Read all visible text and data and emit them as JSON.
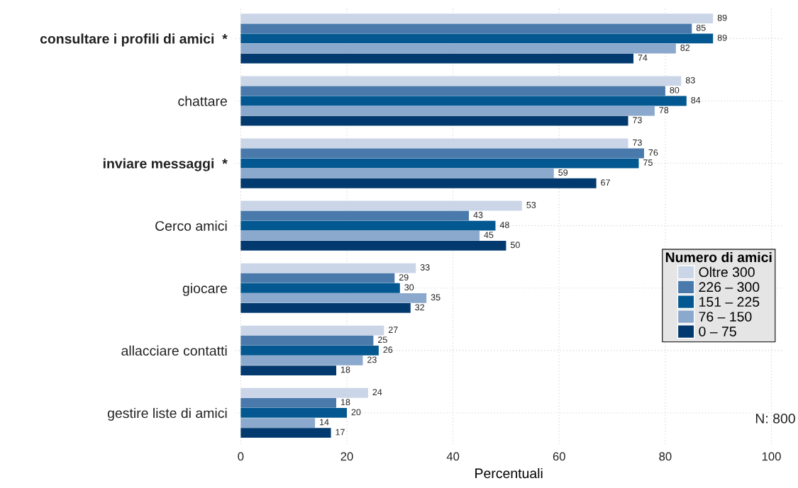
{
  "chart_data": {
    "type": "bar",
    "orientation": "horizontal",
    "xlabel": "Percentuali",
    "legend_title": "Numero di amici",
    "legend": "right",
    "grid": true,
    "data_labels": true,
    "categories": [
      "consultare i profili di amici  *",
      "chattare",
      "inviare messaggi  *",
      "Cerco amici",
      "giocare",
      "allacciare contatti",
      "gestire liste di amici"
    ],
    "xlim": [
      -1,
      102
    ],
    "xticks": [
      0,
      20,
      40,
      60,
      80,
      100
    ],
    "series": [
      {
        "name": "Oltre 300",
        "color": "#cbd5e8",
        "values": [
          89,
          83,
          73,
          53,
          33,
          27,
          24
        ]
      },
      {
        "name": "226 – 300",
        "color": "#4a7aab",
        "values": [
          85,
          80,
          76,
          43,
          29,
          25,
          18
        ]
      },
      {
        "name": "151 – 225",
        "color": "#035891",
        "values": [
          89,
          84,
          75,
          48,
          30,
          26,
          20
        ]
      },
      {
        "name": "76 – 150",
        "color": "#8ba9cd",
        "values": [
          82,
          78,
          59,
          45,
          35,
          23,
          14
        ]
      },
      {
        "name": "0 – 75",
        "color": "#023a6f",
        "values": [
          74,
          73,
          67,
          50,
          32,
          18,
          17
        ]
      }
    ],
    "annotations": [
      "N: 800"
    ]
  }
}
